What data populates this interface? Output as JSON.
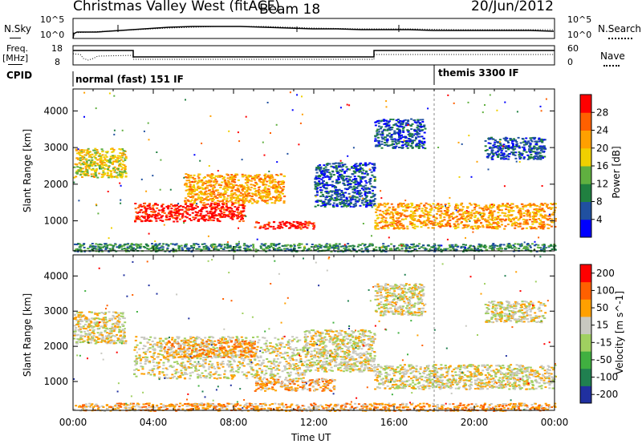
{
  "header": {
    "station": "Christmas Valley West (fitACF)",
    "beam": "Beam 18",
    "date": "20/Jun/2012"
  },
  "noise_panel": {
    "left_label": "N.Sky",
    "right_label": "N.Search",
    "left_ticks": [
      "10^5",
      "10^0"
    ],
    "right_ticks": [
      "10^5",
      "10^0"
    ]
  },
  "freq_panel": {
    "left_label_1": "Freq.",
    "left_label_2": "[MHz]",
    "right_label": "Nave",
    "left_ticks": [
      "18",
      "8"
    ],
    "right_ticks": [
      "60",
      "0"
    ]
  },
  "cpid": {
    "label": "CPID",
    "segments": [
      {
        "name": "normal (fast) 151 IF",
        "start_hour": 0,
        "end_hour": 18
      },
      {
        "name": "themis 3300 IF",
        "start_hour": 18,
        "end_hour": 24
      }
    ]
  },
  "chart_data": [
    {
      "type": "heatmap",
      "name": "power",
      "ylabel": "Slant Range [km]",
      "xlabel": "Time UT",
      "x_ticks": [
        "00:00",
        "04:00",
        "08:00",
        "12:00",
        "16:00",
        "20:00",
        "00:00"
      ],
      "y_ticks": [
        "1000",
        "2000",
        "3000",
        "4000"
      ],
      "xlim_hours": [
        0,
        24
      ],
      "ylim_km": [
        180,
        4600
      ],
      "colorbar": {
        "label": "Power [dB]",
        "ticks": [
          "4",
          "8",
          "12",
          "16",
          "20",
          "24",
          "28"
        ],
        "colors": [
          "#0000ff",
          "#2050a0",
          "#208040",
          "#60b040",
          "#f0d000",
          "#ffa000",
          "#ff6000",
          "#ff0000"
        ]
      },
      "regions": [
        {
          "t0": 0.0,
          "t1": 2.6,
          "r0": 2200,
          "r1": 3000,
          "level": 4
        },
        {
          "t0": 3.0,
          "t1": 8.5,
          "r0": 1000,
          "r1": 1500,
          "level": 7
        },
        {
          "t0": 5.5,
          "t1": 10.5,
          "r0": 1500,
          "r1": 2300,
          "level": 5
        },
        {
          "t0": 9.0,
          "t1": 12.0,
          "r0": 800,
          "r1": 1000,
          "level": 7
        },
        {
          "t0": 12.0,
          "t1": 15.0,
          "r0": 1400,
          "r1": 2600,
          "level": 1
        },
        {
          "t0": 15.0,
          "t1": 24.0,
          "r0": 800,
          "r1": 1500,
          "level": 5
        },
        {
          "t0": 15.0,
          "t1": 17.5,
          "r0": 3000,
          "r1": 3800,
          "level": 1
        },
        {
          "t0": 20.5,
          "t1": 23.5,
          "r0": 2700,
          "r1": 3300,
          "level": 1
        },
        {
          "t0": 0.0,
          "t1": 24.0,
          "r0": 180,
          "r1": 400,
          "level": 2
        }
      ]
    },
    {
      "type": "heatmap",
      "name": "velocity",
      "ylabel": "Slant Range [km]",
      "xlabel": "Time UT",
      "x_ticks": [
        "00:00",
        "04:00",
        "08:00",
        "12:00",
        "16:00",
        "20:00",
        "00:00"
      ],
      "y_ticks": [
        "1000",
        "2000",
        "3000",
        "4000"
      ],
      "xlim_hours": [
        0,
        24
      ],
      "ylim_km": [
        180,
        4600
      ],
      "colorbar": {
        "label": "Velocity [m s^-1]",
        "ticks": [
          "200",
          "100",
          "50",
          "15",
          "-15",
          "-50",
          "-100",
          "-200"
        ],
        "colors": [
          "#2030a0",
          "#208050",
          "#40b040",
          "#a0d060",
          "#c8c8c0",
          "#ffa000",
          "#ff6000",
          "#ff0000"
        ]
      },
      "regions": [
        {
          "t0": 0.0,
          "t1": 2.6,
          "r0": 2100,
          "r1": 3000,
          "level": 4
        },
        {
          "t0": 3.0,
          "t1": 11.5,
          "r0": 1100,
          "r1": 2300,
          "level": 4
        },
        {
          "t0": 4.5,
          "t1": 9.0,
          "r0": 1700,
          "r1": 2200,
          "level": 5
        },
        {
          "t0": 9.0,
          "t1": 13.0,
          "r0": 750,
          "r1": 1100,
          "level": 5
        },
        {
          "t0": 11.5,
          "t1": 15.0,
          "r0": 1300,
          "r1": 2500,
          "level": 4
        },
        {
          "t0": 15.0,
          "t1": 24.0,
          "r0": 800,
          "r1": 1500,
          "level": 4
        },
        {
          "t0": 15.0,
          "t1": 17.5,
          "r0": 2900,
          "r1": 3800,
          "level": 4
        },
        {
          "t0": 20.5,
          "t1": 23.5,
          "r0": 2700,
          "r1": 3300,
          "level": 4
        },
        {
          "t0": 0.0,
          "t1": 24.0,
          "r0": 180,
          "r1": 400,
          "level": 5
        }
      ]
    }
  ]
}
